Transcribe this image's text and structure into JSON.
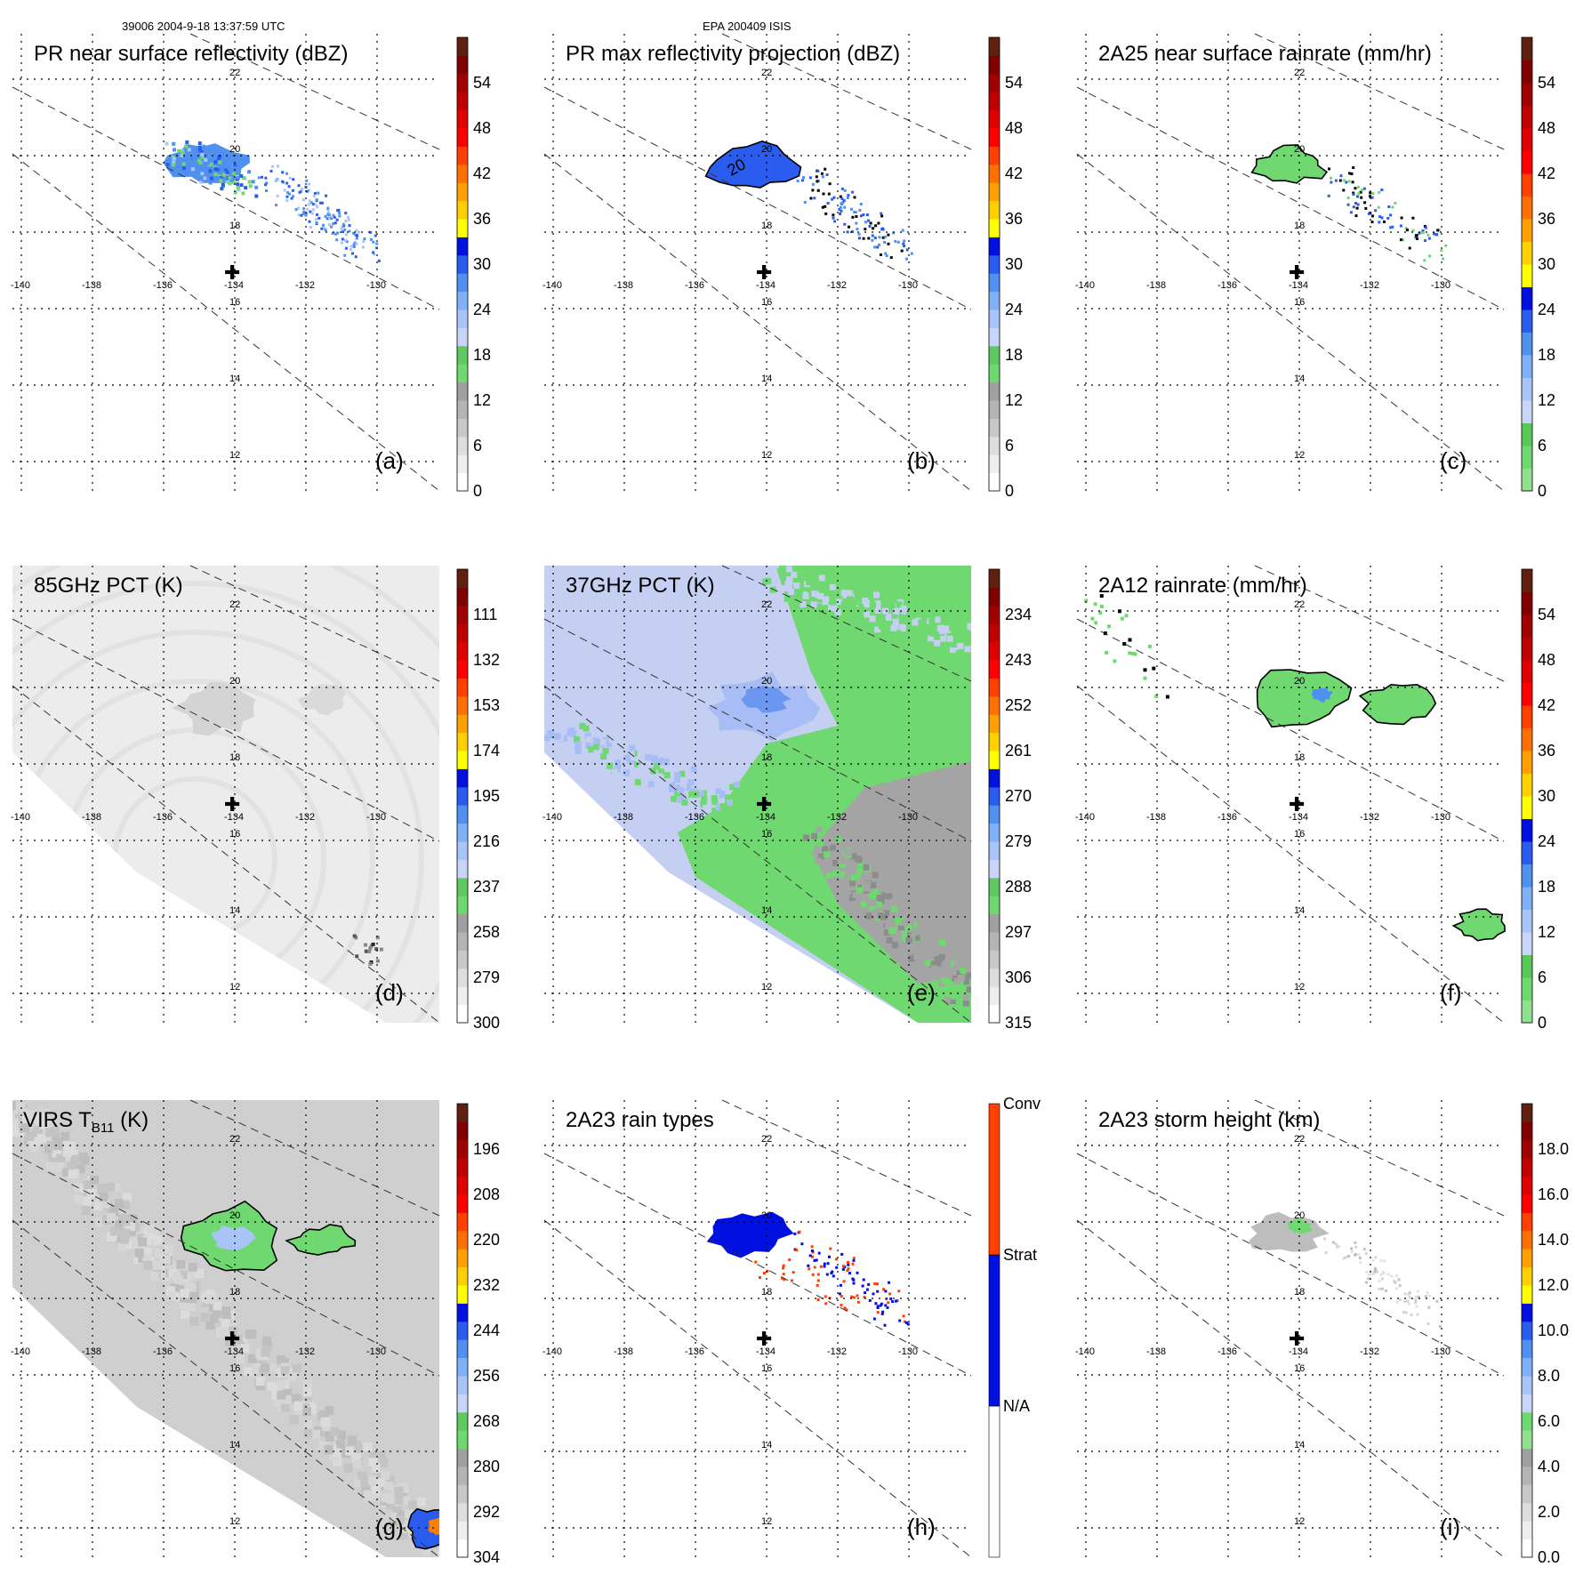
{
  "header": {
    "left": "39006 2004-9-18 13:37:59 UTC",
    "center": "EPA 200409 ISIS"
  },
  "map": {
    "lon_ticks": [
      "-140",
      "-138",
      "-136",
      "-134",
      "-132",
      "-130"
    ],
    "lat_ticks": [
      "22",
      "20",
      "18",
      "16",
      "14",
      "12"
    ],
    "center_marker": "✚"
  },
  "panels": [
    {
      "id": "a",
      "letter": "(a)",
      "title": "PR near surface reflectivity (dBZ)",
      "colorbar": "dbz",
      "labels": [
        "0",
        "6",
        "12",
        "18",
        "24",
        "30",
        "36",
        "42",
        "48",
        "54"
      ],
      "field": "pr_surface"
    },
    {
      "id": "b",
      "letter": "(b)",
      "title": "PR max reflectivity projection (dBZ)",
      "colorbar": "dbz",
      "labels": [
        "0",
        "6",
        "12",
        "18",
        "24",
        "30",
        "36",
        "42",
        "48",
        "54"
      ],
      "field": "pr_max",
      "contour": "20"
    },
    {
      "id": "c",
      "letter": "(c)",
      "title": "2A25 near surface rainrate (mm/hr)",
      "colorbar": "rain",
      "labels": [
        "0",
        "6",
        "12",
        "18",
        "24",
        "30",
        "36",
        "42",
        "48",
        "54"
      ],
      "field": "rain_2a25",
      "contour": "0"
    },
    {
      "id": "d",
      "letter": "(d)",
      "title": "85GHz PCT (K)",
      "colorbar": "pct",
      "labels": [
        "300",
        "279",
        "258",
        "237",
        "216",
        "195",
        "174",
        "153",
        "132",
        "111"
      ],
      "field": "pct85"
    },
    {
      "id": "e",
      "letter": "(e)",
      "title": "37GHz PCT (K)",
      "colorbar": "pct",
      "labels": [
        "315",
        "306",
        "297",
        "288",
        "279",
        "270",
        "261",
        "252",
        "243",
        "234"
      ],
      "field": "pct37"
    },
    {
      "id": "f",
      "letter": "(f)",
      "title": "2A12 rainrate (mm/hr)",
      "colorbar": "rain",
      "labels": [
        "0",
        "6",
        "12",
        "18",
        "24",
        "30",
        "36",
        "42",
        "48",
        "54"
      ],
      "field": "rain_2a12",
      "contour": "0"
    },
    {
      "id": "g",
      "letter": "(g)",
      "title_main": "VIRS T",
      "title_sub": "B11",
      "title_tail": " (K)",
      "colorbar": "pct",
      "labels": [
        "304",
        "292",
        "280",
        "268",
        "256",
        "244",
        "232",
        "220",
        "208",
        "196"
      ],
      "field": "virs"
    },
    {
      "id": "h",
      "letter": "(h)",
      "title": "2A23 rain types",
      "colorbar": "types",
      "labels": [
        "N/A",
        "Strat",
        "Conv"
      ],
      "field": "types"
    },
    {
      "id": "i",
      "letter": "(i)",
      "title": "2A23 storm height (km)",
      "colorbar": "height",
      "labels": [
        "0.0",
        "2.0",
        "4.0",
        "6.0",
        "8.0",
        "10.0",
        "12.0",
        "14.0",
        "16.0",
        "18.0"
      ],
      "field": "height"
    }
  ],
  "colors": {
    "dbz": [
      "#ffffff",
      "#eeeeee",
      "#dddddd",
      "#c8c8c8",
      "#b4b4b4",
      "#a0a0a0",
      "#70d870",
      "#60c860",
      "#c8d4f8",
      "#a8c4f8",
      "#80b0f8",
      "#5090f0",
      "#2a5cf0",
      "#0010e0",
      "#ffff00",
      "#ffd000",
      "#ffa000",
      "#ff7000",
      "#ff4000",
      "#ff0000",
      "#e00000",
      "#c00000",
      "#a00000",
      "#800000",
      "#602010"
    ],
    "rain": [
      "#90e090",
      "#70d870",
      "#58c858",
      "#c8d4f8",
      "#a8c4f8",
      "#80b0f8",
      "#5090f0",
      "#2a5cf0",
      "#0010e0",
      "#ffff00",
      "#ffd000",
      "#ffa000",
      "#ff7000",
      "#ff4000",
      "#ff0000",
      "#e00000",
      "#c00000",
      "#a00000",
      "#800000",
      "#602010"
    ],
    "height": [
      "#ffffff",
      "#eeeeee",
      "#dddddd",
      "#c8c8c8",
      "#b4b4b4",
      "#a0a0a0",
      "#90e090",
      "#70d870",
      "#c8d4f8",
      "#a8c4f8",
      "#80b0f8",
      "#5090f0",
      "#2a5cf0",
      "#0010e0",
      "#ffff00",
      "#ffd000",
      "#ffa000",
      "#ff7000",
      "#ff4000",
      "#ff0000",
      "#e00000",
      "#c00000",
      "#a00000",
      "#800000",
      "#602010"
    ],
    "types": [
      "#ffffff",
      "#0010e0",
      "#ff4000"
    ]
  }
}
